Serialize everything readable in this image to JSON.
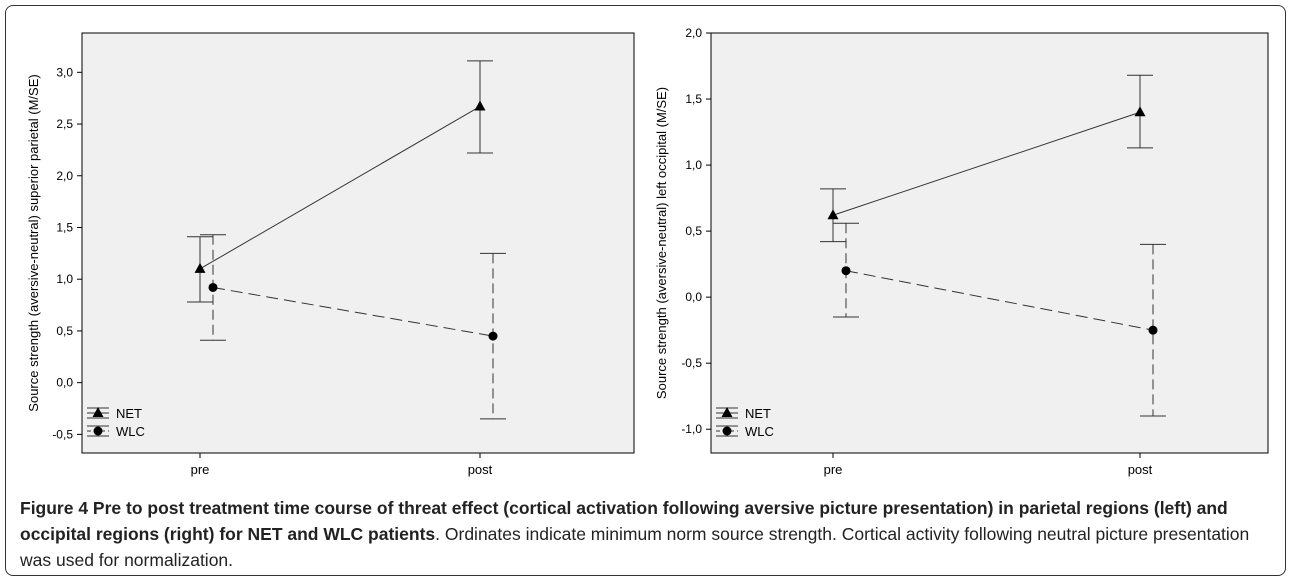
{
  "chart_data": [
    {
      "type": "line",
      "categories": [
        "pre",
        "post"
      ],
      "ylabel": "Source strength (aversive-neutral) superior parietal (M/SE)",
      "ylim": [
        -0.68,
        3.38
      ],
      "yticks": [
        -0.5,
        0.0,
        0.5,
        1.0,
        1.5,
        2.0,
        2.5,
        3.0
      ],
      "ytick_labels": [
        "-0,5",
        "0,0",
        "0,5",
        "1,0",
        "1,5",
        "2,0",
        "2,5",
        "3,0"
      ],
      "legend_position": "bottom-left",
      "series": [
        {
          "name": "NET",
          "marker": "triangle",
          "line_style": "solid",
          "values": [
            1.1,
            2.67
          ],
          "err_low": [
            0.78,
            2.22
          ],
          "err_high": [
            1.41,
            3.11
          ]
        },
        {
          "name": "WLC",
          "marker": "circle",
          "line_style": "dashed",
          "values": [
            0.92,
            0.45
          ],
          "err_low": [
            0.41,
            -0.35
          ],
          "err_high": [
            1.43,
            1.25
          ]
        }
      ]
    },
    {
      "type": "line",
      "categories": [
        "pre",
        "post"
      ],
      "ylabel": "Source strength (aversive-neutral) left occipital (M/SE)",
      "ylim": [
        -1.18,
        2.0
      ],
      "yticks": [
        -1.0,
        -0.5,
        0.0,
        0.5,
        1.0,
        1.5,
        2.0
      ],
      "ytick_labels": [
        "-1,0",
        "-0,5",
        "0,0",
        "0,5",
        "1,0",
        "1,5",
        "2,0"
      ],
      "legend_position": "bottom-left",
      "series": [
        {
          "name": "NET",
          "marker": "triangle",
          "line_style": "solid",
          "values": [
            0.62,
            1.4
          ],
          "err_low": [
            0.42,
            1.13
          ],
          "err_high": [
            0.82,
            1.68
          ]
        },
        {
          "name": "WLC",
          "marker": "circle",
          "line_style": "dashed",
          "values": [
            0.2,
            -0.25
          ],
          "err_low": [
            -0.15,
            -0.9
          ],
          "err_high": [
            0.56,
            0.4
          ]
        }
      ]
    }
  ],
  "caption": {
    "bold": "Figure 4 Pre to post treatment time course of threat effect (cortical activation following aversive picture presentation) in parietal regions (left) and occipital regions (right) for NET and WLC patients",
    "rest": ". Ordinates indicate minimum norm source strength. Cortical activity following neutral picture presentation was used for normalization."
  }
}
